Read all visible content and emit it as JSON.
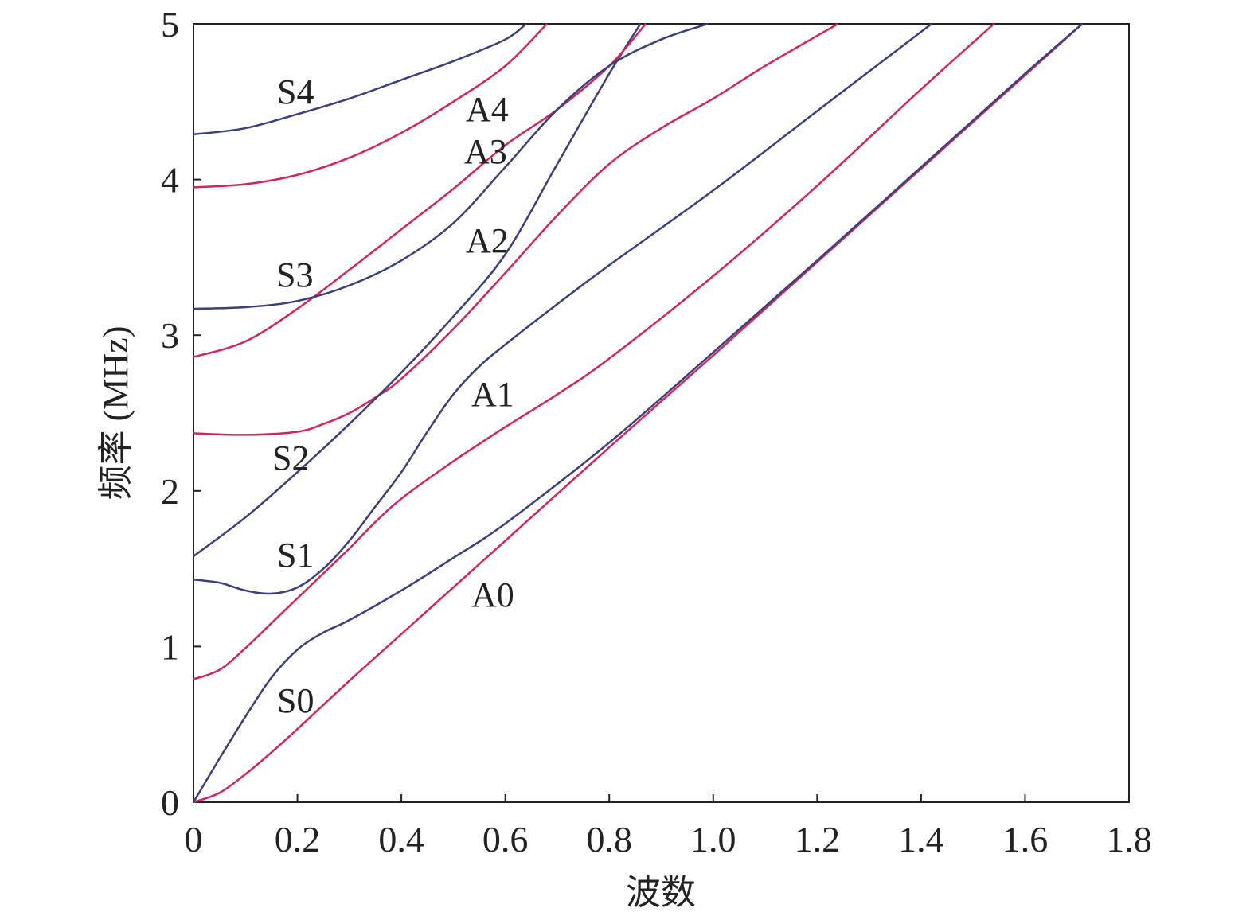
{
  "chart_data": {
    "type": "line",
    "x_label": "波数",
    "y_label": "频率 (MHz)",
    "xlim": [
      0,
      1.8
    ],
    "ylim": [
      0,
      5
    ],
    "xticks": [
      0,
      0.2,
      0.4,
      0.6,
      0.8,
      {
        "value": 1,
        "label": "1.0"
      },
      1.2,
      1.4,
      1.6,
      1.8
    ],
    "yticks": [
      0,
      1,
      2,
      3,
      4,
      5
    ],
    "grid": false,
    "series": [
      {
        "name": "A0",
        "color": "#d6245a",
        "x": [
          0,
          0.05,
          0.1,
          0.15,
          0.2,
          0.3,
          0.4,
          0.6,
          0.8,
          1.0,
          1.2,
          1.4,
          1.6,
          1.71
        ],
        "values": [
          0,
          0.06,
          0.18,
          0.32,
          0.47,
          0.78,
          1.08,
          1.68,
          2.28,
          2.87,
          3.47,
          4.07,
          4.67,
          5.0
        ]
      },
      {
        "name": "S0",
        "color": "#3d3f78",
        "x": [
          0,
          0.05,
          0.1,
          0.15,
          0.2,
          0.25,
          0.3,
          0.4,
          0.5,
          0.6,
          0.8,
          1.0,
          1.2,
          1.4,
          1.6,
          1.71
        ],
        "values": [
          0,
          0.28,
          0.55,
          0.8,
          0.98,
          1.09,
          1.17,
          1.36,
          1.57,
          1.79,
          2.31,
          2.89,
          3.48,
          4.08,
          4.68,
          5.0
        ]
      },
      {
        "name": "A1",
        "color": "#d6245a",
        "x": [
          0,
          0.05,
          0.1,
          0.15,
          0.2,
          0.25,
          0.3,
          0.35,
          0.4,
          0.5,
          0.6,
          0.7,
          0.8,
          1.0,
          1.2,
          1.4,
          1.54
        ],
        "values": [
          0.79,
          0.85,
          0.99,
          1.15,
          1.31,
          1.47,
          1.63,
          1.8,
          1.95,
          2.19,
          2.41,
          2.62,
          2.85,
          3.38,
          3.96,
          4.58,
          5.0
        ]
      },
      {
        "name": "S1",
        "color": "#3d3f78",
        "x": [
          0,
          0.05,
          0.1,
          0.15,
          0.2,
          0.25,
          0.3,
          0.35,
          0.4,
          0.45,
          0.5,
          0.55,
          0.6,
          0.7,
          0.8,
          1.0,
          1.2,
          1.42
        ],
        "values": [
          1.43,
          1.41,
          1.36,
          1.34,
          1.38,
          1.5,
          1.68,
          1.9,
          2.12,
          2.38,
          2.62,
          2.8,
          2.94,
          3.2,
          3.45,
          3.93,
          4.44,
          5.0
        ]
      },
      {
        "name": "A2",
        "color": "#d6245a",
        "x": [
          0,
          0.1,
          0.2,
          0.25,
          0.3,
          0.35,
          0.4,
          0.5,
          0.6,
          0.7,
          0.8,
          0.9,
          1.0,
          1.1,
          1.24
        ],
        "values": [
          2.37,
          2.36,
          2.38,
          2.43,
          2.5,
          2.6,
          2.72,
          3.04,
          3.4,
          3.77,
          4.1,
          4.33,
          4.52,
          4.73,
          5.0
        ]
      },
      {
        "name": "S2",
        "color": "#3d3f78",
        "x": [
          0,
          0.1,
          0.2,
          0.3,
          0.4,
          0.5,
          0.6,
          0.7,
          0.8,
          0.86
        ],
        "values": [
          1.58,
          1.83,
          2.12,
          2.43,
          2.76,
          3.12,
          3.52,
          4.1,
          4.68,
          5.0
        ]
      },
      {
        "name": "A3",
        "color": "#d6245a",
        "x": [
          0,
          0.1,
          0.2,
          0.3,
          0.4,
          0.5,
          0.6,
          0.7,
          0.8,
          0.87
        ],
        "values": [
          2.86,
          2.96,
          3.17,
          3.42,
          3.68,
          3.94,
          4.22,
          4.45,
          4.73,
          5.0
        ]
      },
      {
        "name": "S3",
        "color": "#3d3f78",
        "x": [
          0,
          0.1,
          0.2,
          0.3,
          0.4,
          0.5,
          0.6,
          0.7,
          0.8,
          0.9,
          0.99
        ],
        "values": [
          3.17,
          3.18,
          3.22,
          3.32,
          3.48,
          3.72,
          4.08,
          4.45,
          4.73,
          4.9,
          5.0
        ]
      },
      {
        "name": "A4",
        "color": "#d6245a",
        "x": [
          0,
          0.1,
          0.2,
          0.3,
          0.4,
          0.5,
          0.6,
          0.68
        ],
        "values": [
          3.95,
          3.97,
          4.03,
          4.14,
          4.3,
          4.5,
          4.73,
          5.0
        ]
      },
      {
        "name": "S4",
        "color": "#3d3f78",
        "x": [
          0,
          0.1,
          0.2,
          0.3,
          0.4,
          0.5,
          0.6,
          0.64
        ],
        "values": [
          4.29,
          4.33,
          4.42,
          4.52,
          4.64,
          4.76,
          4.9,
          5.0
        ]
      }
    ]
  }
}
